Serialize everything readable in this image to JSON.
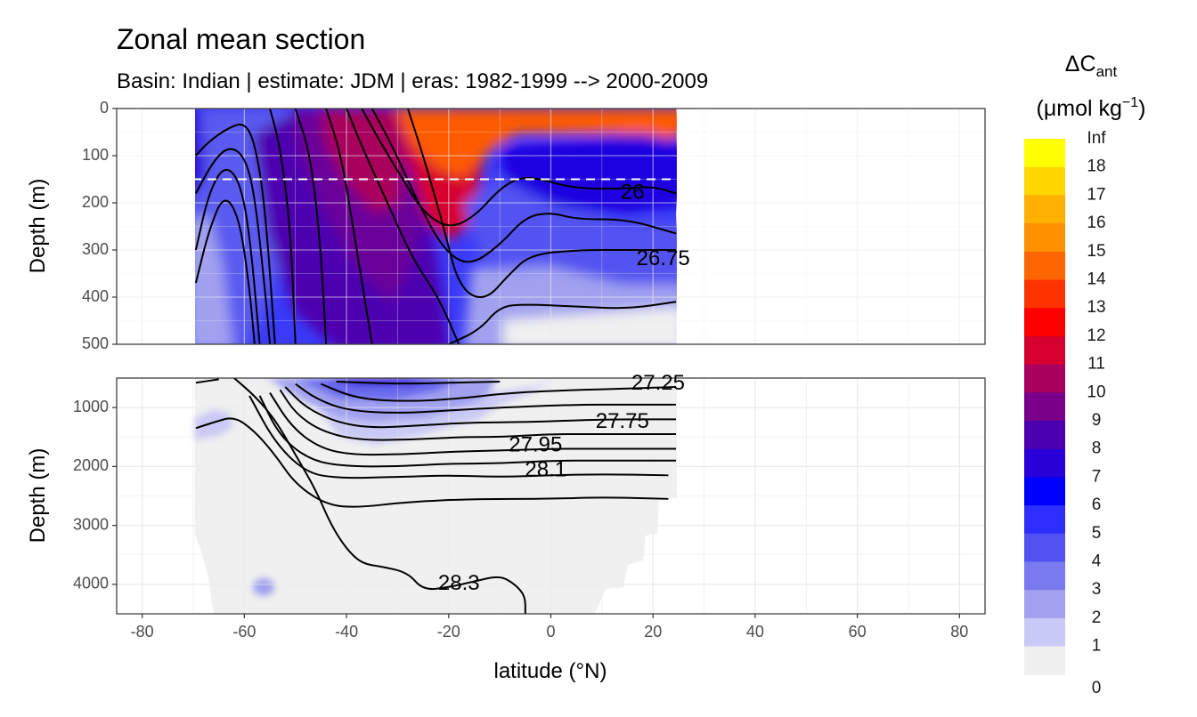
{
  "chart_data": {
    "type": "contour",
    "title": "Zonal mean section",
    "subtitle": "Basin: Indian | estimate: JDM  | eras: 1982-1999 --> 2000-2009",
    "xlabel": "latitude (°N)",
    "ylabel": "Depth (m)",
    "xlim": [
      -85,
      85
    ],
    "x_ticks": [
      -80,
      -60,
      -40,
      -20,
      0,
      20,
      40,
      60,
      80
    ],
    "x_tick_labels": [
      "-80",
      "-60",
      "-40",
      "-20",
      "0",
      "20",
      "40",
      "60",
      "80"
    ],
    "data_lat_range": [
      -69.5,
      24.5
    ],
    "panels": [
      {
        "name": "upper",
        "ylim": [
          0,
          500
        ],
        "y_ticks": [
          0,
          100,
          200,
          300,
          400,
          500
        ],
        "y_tick_labels": [
          "0",
          "100",
          "200",
          "300",
          "400",
          "500"
        ],
        "reference_depth": 150
      },
      {
        "name": "lower",
        "ylim": [
          500,
          4500
        ],
        "y_ticks": [
          1000,
          2000,
          3000,
          4000
        ],
        "y_tick_labels": [
          "1000",
          "2000",
          "3000",
          "4000"
        ]
      }
    ],
    "legend": {
      "title_main": "ΔC",
      "title_sub": "ant",
      "units_prefix": "(μmol kg",
      "units_sup": "−1",
      "units_suffix": ")",
      "placement": "right",
      "breaks": [
        "Inf",
        "18",
        "17",
        "16",
        "15",
        "14",
        "13",
        "12",
        "11",
        "10",
        "9",
        "8",
        "7",
        "6",
        "5",
        "4",
        "3",
        "2",
        "1",
        "0"
      ],
      "colors": [
        "#ffff00",
        "#ffd700",
        "#ffb000",
        "#ff9000",
        "#ff6600",
        "#ff3300",
        "#ff0000",
        "#d6002e",
        "#a8005c",
        "#7a008a",
        "#4d00b0",
        "#2a00d8",
        "#0000ff",
        "#2e2eff",
        "#5252f2",
        "#7a7aee",
        "#a1a1f0",
        "#c9c9f5",
        "#f0f0f0"
      ]
    },
    "isopycnal_labels": [
      {
        "label": "26",
        "lat": 16,
        "depth": 180,
        "panel": "upper"
      },
      {
        "label": "26.75",
        "lat": 22,
        "depth": 320,
        "panel": "upper"
      },
      {
        "label": "27.25",
        "lat": 21,
        "depth": 600,
        "panel": "lower"
      },
      {
        "label": "27.75",
        "lat": 14,
        "depth": 1250,
        "panel": "lower"
      },
      {
        "label": "27.95",
        "lat": -3,
        "depth": 1650,
        "panel": "lower"
      },
      {
        "label": "28.1",
        "lat": -1,
        "depth": 2070,
        "panel": "lower"
      },
      {
        "label": "28.3",
        "lat": -18,
        "depth": 4000,
        "panel": "lower"
      }
    ],
    "isopycnals": [
      {
        "panel": "upper",
        "points": [
          [
            -69.5,
            100
          ],
          [
            -67,
            70
          ],
          [
            -63,
            40
          ],
          [
            -60,
            30
          ],
          [
            -58,
            70
          ],
          [
            -56,
            200
          ],
          [
            -54,
            500
          ]
        ]
      },
      {
        "panel": "upper",
        "points": [
          [
            -69.5,
            180
          ],
          [
            -66,
            110
          ],
          [
            -63,
            80
          ],
          [
            -60,
            100
          ],
          [
            -58,
            180
          ],
          [
            -56,
            380
          ],
          [
            -55,
            500
          ]
        ]
      },
      {
        "panel": "upper",
        "points": [
          [
            -69.5,
            300
          ],
          [
            -67,
            180
          ],
          [
            -64,
            120
          ],
          [
            -61,
            150
          ],
          [
            -59,
            260
          ],
          [
            -57,
            500
          ]
        ]
      },
      {
        "panel": "upper",
        "points": [
          [
            -69.5,
            370
          ],
          [
            -67,
            260
          ],
          [
            -64,
            180
          ],
          [
            -61,
            230
          ],
          [
            -59,
            380
          ],
          [
            -58,
            500
          ]
        ]
      },
      {
        "panel": "upper",
        "points": [
          [
            -55,
            0
          ],
          [
            -53,
            80
          ],
          [
            -51,
            250
          ],
          [
            -50,
            500
          ]
        ]
      },
      {
        "panel": "upper",
        "points": [
          [
            -50,
            0
          ],
          [
            -47,
            100
          ],
          [
            -45,
            300
          ],
          [
            -44,
            500
          ]
        ]
      },
      {
        "panel": "upper",
        "points": [
          [
            -44,
            0
          ],
          [
            -41,
            100
          ],
          [
            -38,
            300
          ],
          [
            -35,
            500
          ]
        ]
      },
      {
        "panel": "upper",
        "points": [
          [
            -40,
            0
          ],
          [
            -37,
            80
          ],
          [
            -32,
            200
          ],
          [
            -27,
            320
          ],
          [
            -22,
            400
          ],
          [
            -18,
            500
          ]
        ]
      },
      {
        "panel": "upper",
        "points": [
          [
            -37,
            0
          ],
          [
            -34,
            60
          ],
          [
            -29,
            150
          ],
          [
            -25,
            220
          ],
          [
            -20,
            255
          ],
          [
            -15,
            230
          ],
          [
            -10,
            170
          ],
          [
            -6,
            145
          ],
          [
            -2,
            150
          ],
          [
            5,
            170
          ],
          [
            15,
            170
          ],
          [
            20,
            165
          ],
          [
            24.5,
            180
          ]
        ]
      },
      {
        "panel": "upper",
        "points": [
          [
            -35,
            0
          ],
          [
            -31,
            80
          ],
          [
            -26,
            200
          ],
          [
            -21,
            300
          ],
          [
            -16,
            335
          ],
          [
            -10,
            290
          ],
          [
            -5,
            230
          ],
          [
            0,
            220
          ],
          [
            5,
            235
          ],
          [
            15,
            235
          ],
          [
            24.5,
            265
          ]
        ]
      },
      {
        "panel": "upper",
        "points": [
          [
            -28,
            0
          ],
          [
            -25,
            100
          ],
          [
            -21,
            250
          ],
          [
            -18,
            380
          ],
          [
            -13,
            410
          ],
          [
            -8,
            350
          ],
          [
            -4,
            310
          ],
          [
            5,
            300
          ],
          [
            15,
            300
          ],
          [
            24.5,
            300
          ]
        ]
      },
      {
        "panel": "upper",
        "points": [
          [
            -20,
            500
          ],
          [
            -14,
            470
          ],
          [
            -10,
            420
          ],
          [
            -5,
            415
          ],
          [
            5,
            420
          ],
          [
            15,
            425
          ],
          [
            24.5,
            410
          ]
        ]
      },
      {
        "panel": "lower",
        "points": [
          [
            -69.5,
            580
          ],
          [
            -65,
            520
          ]
        ]
      },
      {
        "panel": "lower",
        "points": [
          [
            -42,
            560
          ],
          [
            -30,
            600
          ],
          [
            -20,
            580
          ],
          [
            -10,
            560
          ]
        ]
      },
      {
        "panel": "lower",
        "points": [
          [
            -45,
            600
          ],
          [
            -38,
            850
          ],
          [
            -28,
            900
          ],
          [
            -18,
            850
          ],
          [
            -8,
            750
          ],
          [
            5,
            700
          ],
          [
            15,
            680
          ],
          [
            24.5,
            650
          ]
        ]
      },
      {
        "panel": "lower",
        "points": [
          [
            -50,
            600
          ],
          [
            -46,
            850
          ],
          [
            -40,
            1050
          ],
          [
            -30,
            1100
          ],
          [
            -20,
            1050
          ],
          [
            -10,
            1000
          ],
          [
            5,
            950
          ],
          [
            15,
            950
          ],
          [
            24.5,
            950
          ]
        ]
      },
      {
        "panel": "lower",
        "points": [
          [
            -52,
            650
          ],
          [
            -48,
            1000
          ],
          [
            -42,
            1250
          ],
          [
            -35,
            1350
          ],
          [
            -25,
            1300
          ],
          [
            -15,
            1250
          ],
          [
            -5,
            1250
          ],
          [
            10,
            1200
          ],
          [
            24.5,
            1200
          ]
        ]
      },
      {
        "panel": "lower",
        "points": [
          [
            -53,
            700
          ],
          [
            -50,
            1100
          ],
          [
            -45,
            1400
          ],
          [
            -38,
            1550
          ],
          [
            -28,
            1550
          ],
          [
            -18,
            1500
          ],
          [
            -10,
            1500
          ],
          [
            0,
            1450
          ],
          [
            10,
            1450
          ],
          [
            24.5,
            1450
          ]
        ]
      },
      {
        "panel": "lower",
        "points": [
          [
            -55,
            750
          ],
          [
            -51,
            1300
          ],
          [
            -46,
            1650
          ],
          [
            -40,
            1800
          ],
          [
            -30,
            1800
          ],
          [
            -20,
            1750
          ],
          [
            -10,
            1730
          ],
          [
            0,
            1700
          ],
          [
            10,
            1700
          ],
          [
            24.5,
            1700
          ]
        ]
      },
      {
        "panel": "lower",
        "points": [
          [
            -57,
            800
          ],
          [
            -53,
            1500
          ],
          [
            -47,
            1900
          ],
          [
            -40,
            2000
          ],
          [
            -30,
            2000
          ],
          [
            -20,
            1950
          ],
          [
            -10,
            1950
          ],
          [
            0,
            1900
          ],
          [
            10,
            1900
          ],
          [
            24.5,
            1900
          ]
        ]
      },
      {
        "panel": "lower",
        "points": [
          [
            -59,
            800
          ],
          [
            -54,
            1600
          ],
          [
            -48,
            2100
          ],
          [
            -42,
            2200
          ],
          [
            -30,
            2180
          ],
          [
            -20,
            2150
          ],
          [
            -10,
            2180
          ],
          [
            0,
            2150
          ],
          [
            10,
            2130
          ],
          [
            23,
            2150
          ]
        ]
      },
      {
        "panel": "lower",
        "points": [
          [
            -69.5,
            1350
          ],
          [
            -66,
            1250
          ],
          [
            -62,
            1150
          ],
          [
            -58,
            1400
          ],
          [
            -54,
            1800
          ],
          [
            -50,
            2300
          ],
          [
            -44,
            2650
          ],
          [
            -38,
            2700
          ],
          [
            -28,
            2600
          ],
          [
            -15,
            2550
          ],
          [
            0,
            2550
          ],
          [
            10,
            2520
          ],
          [
            23,
            2550
          ]
        ]
      },
      {
        "panel": "lower",
        "points": [
          [
            -62,
            500
          ],
          [
            -58,
            800
          ],
          [
            -54,
            1200
          ],
          [
            -50,
            1800
          ],
          [
            -46,
            2400
          ],
          [
            -43,
            3000
          ],
          [
            -40,
            3400
          ],
          [
            -37,
            3650
          ],
          [
            -33,
            3700
          ],
          [
            -28,
            3800
          ],
          [
            -25,
            4100
          ],
          [
            -20,
            4050
          ],
          [
            -15,
            3950
          ],
          [
            -10,
            3850
          ],
          [
            -7,
            4000
          ],
          [
            -5,
            4200
          ],
          [
            -5,
            4500
          ]
        ]
      }
    ]
  }
}
